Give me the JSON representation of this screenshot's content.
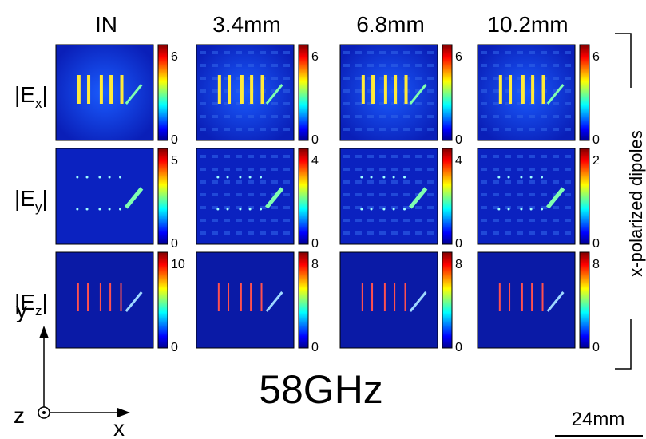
{
  "columns": [
    "IN",
    "3.4mm",
    "6.8mm",
    "10.2mm"
  ],
  "rows": [
    {
      "prefix": "|E",
      "sub": "x",
      "suffix": "|",
      "colorbar_max": [
        6,
        6,
        6,
        6
      ],
      "colorbar_min": [
        0,
        0,
        0,
        0
      ]
    },
    {
      "prefix": "|E",
      "sub": "y",
      "suffix": "|",
      "colorbar_max": [
        5,
        4,
        4,
        2
      ],
      "colorbar_min": [
        0,
        0,
        0,
        0
      ]
    },
    {
      "prefix": "|E",
      "sub": "z",
      "suffix": "|",
      "colorbar_max": [
        10,
        8,
        8,
        8
      ],
      "colorbar_min": [
        0,
        0,
        0,
        0
      ]
    }
  ],
  "frequency": "58GHz",
  "polarization": "x-polarized dipoles",
  "scale_bar": "24mm",
  "axes": {
    "x": "x",
    "y": "y",
    "z": "z"
  }
}
